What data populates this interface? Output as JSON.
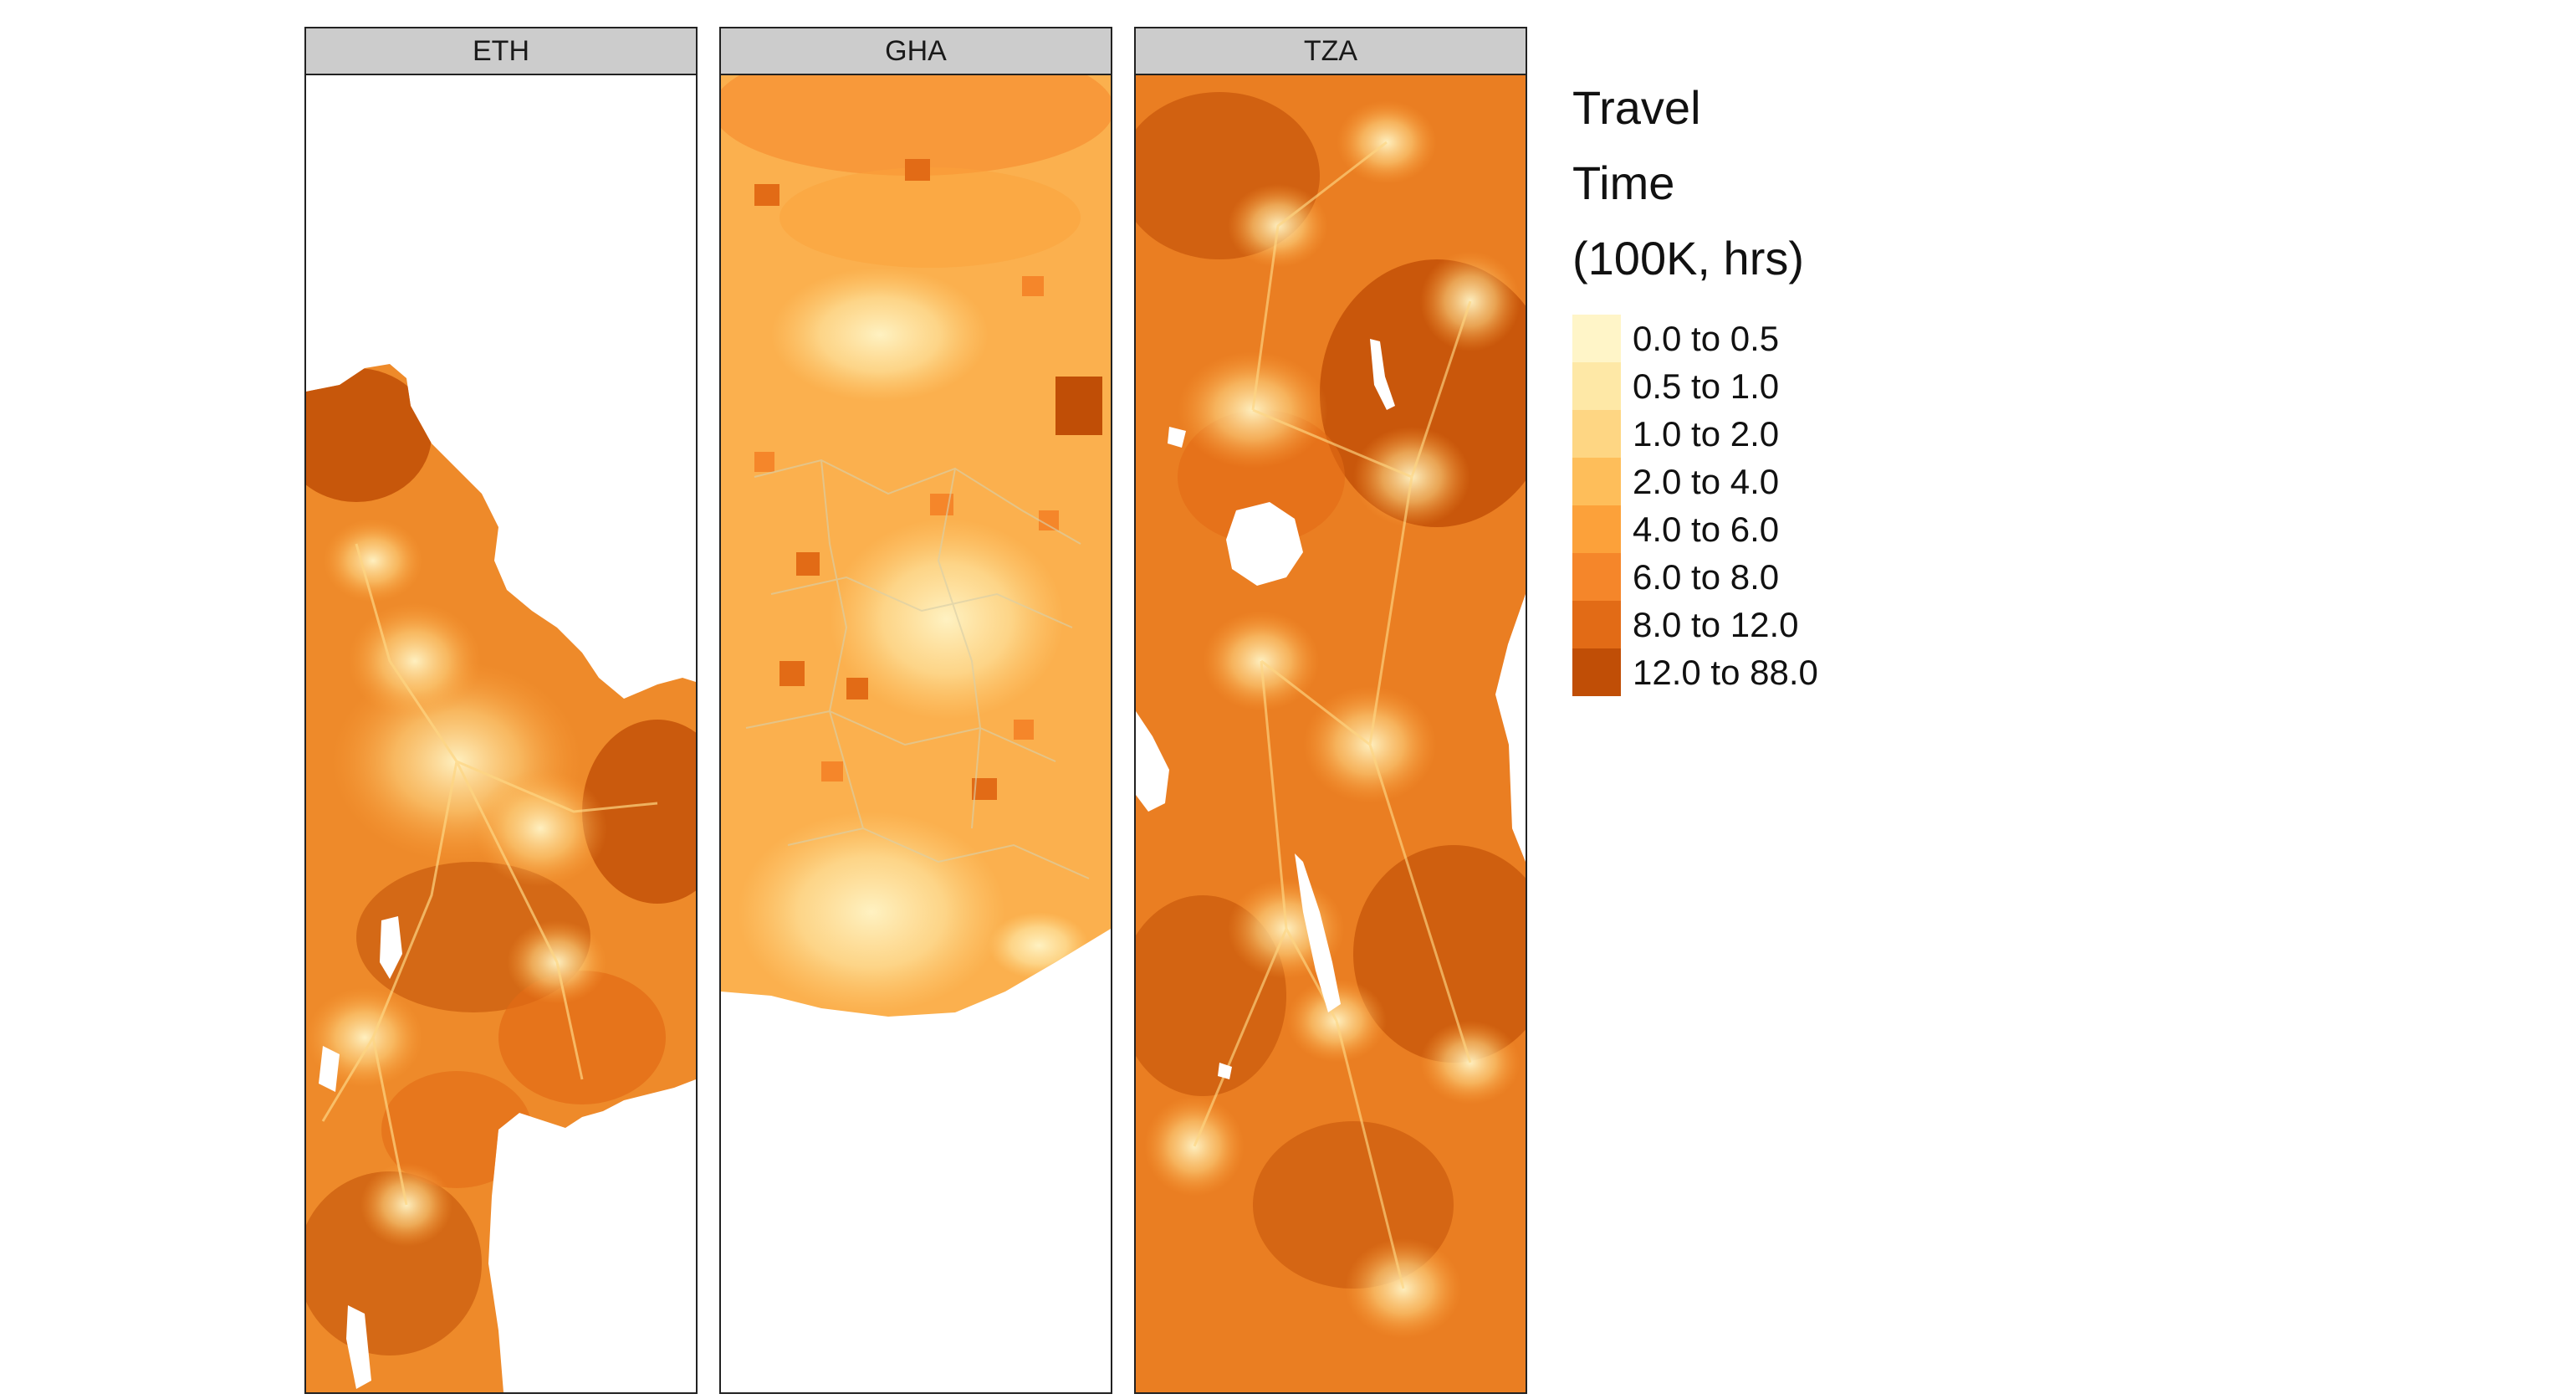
{
  "facets": [
    {
      "id": "eth",
      "label": "ETH"
    },
    {
      "id": "gha",
      "label": "GHA"
    },
    {
      "id": "tza",
      "label": "TZA"
    }
  ],
  "legend": {
    "title_lines": [
      "Travel",
      "Time",
      "(100K, hrs)"
    ],
    "items": [
      {
        "label": "0.0 to 0.5",
        "color": "#fff5c8"
      },
      {
        "label": "0.5 to 1.0",
        "color": "#fee8a6"
      },
      {
        "label": "1.0 to 2.0",
        "color": "#fed683"
      },
      {
        "label": "2.0 to 4.0",
        "color": "#febe5a"
      },
      {
        "label": "4.0 to 6.0",
        "color": "#fca13a"
      },
      {
        "label": "6.0 to 8.0",
        "color": "#f5862a"
      },
      {
        "label": "8.0 to 12.0",
        "color": "#e26b16"
      },
      {
        "label": "12.0 to 88.0",
        "color": "#c04e06"
      }
    ]
  }
}
